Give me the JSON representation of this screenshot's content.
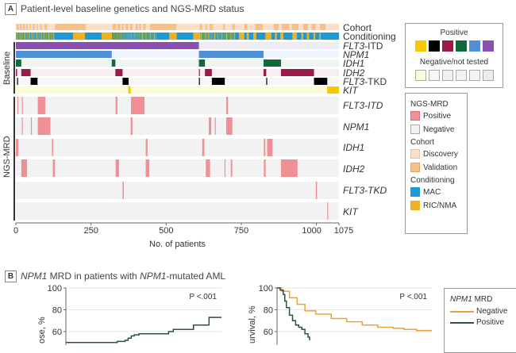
{
  "panel_a": {
    "label": "A",
    "title": "Patient-level baseline genetics and NGS-MRD status",
    "group_labels": {
      "baseline": "Baseline",
      "ngs_mrd": "NGS-MRD"
    },
    "annotation_rows": [
      {
        "key": "cohort",
        "label": "Cohort"
      },
      {
        "key": "conditioning",
        "label": "Conditioning"
      }
    ],
    "baseline_rows": [
      {
        "gene": "FLT3",
        "suffix": "-ITD",
        "italic_full": false
      },
      {
        "gene": "NPM1",
        "suffix": "",
        "italic_full": true
      },
      {
        "gene": "IDH1",
        "suffix": "",
        "italic_full": true
      },
      {
        "gene": "IDH2",
        "suffix": "",
        "italic_full": true
      },
      {
        "gene": "FLT3",
        "suffix": "-TKD",
        "italic_full": false
      },
      {
        "gene": "KIT",
        "suffix": "",
        "italic_full": true
      }
    ],
    "mrd_rows": [
      {
        "gene": "FLT3",
        "suffix": "-ITD"
      },
      {
        "gene": "NPM1",
        "suffix": ""
      },
      {
        "gene": "IDH1",
        "suffix": ""
      },
      {
        "gene": "IDH2",
        "suffix": ""
      },
      {
        "gene": "FLT3",
        "suffix": "-TKD"
      },
      {
        "gene": "KIT",
        "suffix": ""
      }
    ],
    "x_axis": {
      "label": "No. of patients",
      "ticks": [
        "0",
        "250",
        "500",
        "750",
        "1000",
        "1075"
      ],
      "tick_values": [
        0,
        250,
        500,
        750,
        1000,
        1075
      ]
    },
    "legend_positive": {
      "title": "Positive",
      "colors": [
        "#f5c800",
        "#000000",
        "#9b1b4a",
        "#0f6a3a",
        "#4f8fd6",
        "#8a4fb0"
      ],
      "neg_title": "Negative/not tested",
      "neg_colors": [
        "#fbfbd6",
        "#f6f6f6",
        "#f7eef1",
        "#eef4ef",
        "#eef5fb",
        "#ececf2"
      ]
    },
    "legend_mrd": {
      "ngs_title": "NGS-MRD",
      "ngs_items": [
        {
          "label": "Positive",
          "color": "#ef8f96"
        },
        {
          "label": "Negative",
          "color": "#f2f2f3"
        }
      ],
      "cohort_title": "Cohort",
      "cohort_items": [
        {
          "label": "Discovery",
          "color": "#fbe0c9"
        },
        {
          "label": "Validation",
          "color": "#f6c08a"
        }
      ],
      "cond_title": "Conditioning",
      "cond_items": [
        {
          "label": "MAC",
          "color": "#1a9bd7"
        },
        {
          "label": "RIC/NMA",
          "color": "#f2b01e"
        }
      ]
    }
  },
  "panel_b": {
    "label": "B",
    "title_gene1": "NPM1",
    "title_mid": " MRD in patients with ",
    "title_gene2": "NPM1",
    "title_end": "-mutated AML",
    "legend": {
      "title_gene": "NPM1",
      "title_rest": " MRD",
      "items": [
        {
          "label": "Negative",
          "color": "#e8a33a"
        },
        {
          "label": "Positive",
          "color": "#2f4f4a"
        }
      ]
    }
  },
  "chart_data": [
    {
      "type": "heatmap",
      "title": "Patient-level baseline genetics and NGS-MRD status",
      "xlabel": "No. of patients",
      "xlim": [
        0,
        1075
      ],
      "rows": [
        "Cohort",
        "Conditioning",
        "FLT3-ITD",
        "NPM1",
        "IDH1",
        "IDH2",
        "FLT3-TKD",
        "KIT",
        "MRD FLT3-ITD",
        "MRD NPM1",
        "MRD IDH1",
        "MRD IDH2",
        "MRD FLT3-TKD",
        "MRD KIT"
      ],
      "baseline_positive_spans": {
        "FLT3-ITD": [
          [
            0,
            609
          ]
        ],
        "NPM1": [
          [
            0,
            319
          ],
          [
            609,
            824
          ]
        ],
        "IDH1": [
          [
            0,
            18
          ],
          [
            319,
            331
          ],
          [
            609,
            629
          ],
          [
            824,
            882
          ]
        ],
        "IDH2": [
          [
            0,
            4
          ],
          [
            18,
            49
          ],
          [
            331,
            355
          ],
          [
            609,
            612
          ],
          [
            629,
            652
          ],
          [
            824,
            833
          ],
          [
            882,
            992
          ]
        ],
        "FLT3-TKD": [
          [
            4,
            6
          ],
          [
            49,
            72
          ],
          [
            355,
            375
          ],
          [
            609,
            612
          ],
          [
            652,
            695
          ],
          [
            833,
            835
          ],
          [
            992,
            1036
          ]
        ],
        "KIT": [
          [
            374,
            382
          ],
          [
            1036,
            1075
          ]
        ]
      },
      "mrd_positive_spans": {
        "FLT3-ITD": [
          [
            5,
            7
          ],
          [
            20,
            22
          ],
          [
            73,
            98
          ],
          [
            332,
            338
          ],
          [
            383,
            428
          ],
          [
            700,
            706
          ]
        ],
        "NPM1": [
          [
            20,
            22
          ],
          [
            50,
            52
          ],
          [
            73,
            115
          ],
          [
            382,
            388
          ],
          [
            642,
            650
          ],
          [
            662,
            665
          ],
          [
            700,
            720
          ]
        ],
        "IDH1": [
          [
            0,
            8
          ],
          [
            120,
            124
          ],
          [
            432,
            438
          ],
          [
            620,
            627
          ],
          [
            825,
            830
          ],
          [
            836,
            854
          ]
        ],
        "IDH2": [
          [
            18,
            37
          ],
          [
            123,
            130
          ],
          [
            332,
            343
          ],
          [
            432,
            444
          ],
          [
            632,
            646
          ],
          [
            694,
            697
          ],
          [
            715,
            720
          ],
          [
            825,
            831
          ],
          [
            882,
            937
          ]
        ],
        "FLT3-TKD": [
          [
            355,
            359
          ],
          [
            998,
            1002
          ]
        ],
        "KIT": [
          [
            1036,
            1038
          ]
        ]
      },
      "baseline_colors": {
        "FLT3-ITD": "#8a4fb0",
        "NPM1": "#4f8fd6",
        "IDH1": "#0f6a3a",
        "IDH2": "#9b1b4a",
        "FLT3-TKD": "#000000",
        "KIT": "#f5c800"
      },
      "baseline_neg_colors": {
        "FLT3-ITD": "#ececf2",
        "NPM1": "#eef5fb",
        "IDH1": "#eef4ef",
        "IDH2": "#f7eef1",
        "FLT3-TKD": "#f6f6f6",
        "KIT": "#fbfbd6"
      },
      "cohort_validation_spans": [
        [
          2,
          10
        ],
        [
          14,
          20
        ],
        [
          24,
          30
        ],
        [
          34,
          40
        ],
        [
          46,
          50
        ],
        [
          56,
          62
        ],
        [
          70,
          74
        ],
        [
          80,
          86
        ],
        [
          96,
          104
        ],
        [
          130,
          232
        ],
        [
          322,
          334
        ],
        [
          338,
          348
        ],
        [
          352,
          358
        ],
        [
          364,
          374
        ],
        [
          380,
          388
        ],
        [
          398,
          406
        ],
        [
          410,
          416
        ],
        [
          424,
          432
        ],
        [
          446,
          534
        ],
        [
          612,
          620
        ],
        [
          630,
          636
        ],
        [
          644,
          656
        ],
        [
          690,
          696
        ],
        [
          720,
          728
        ],
        [
          760,
          770
        ],
        [
          796,
          822
        ],
        [
          858,
          874
        ],
        [
          884,
          910
        ],
        [
          918,
          940
        ],
        [
          956,
          972
        ],
        [
          984,
          998
        ],
        [
          1012,
          1030
        ]
      ],
      "conditioning_ric_spans": [
        [
          4,
          6
        ],
        [
          12,
          14
        ],
        [
          20,
          22
        ],
        [
          28,
          30
        ],
        [
          36,
          38
        ],
        [
          44,
          46
        ],
        [
          52,
          54
        ],
        [
          60,
          62
        ],
        [
          68,
          70
        ],
        [
          76,
          78
        ],
        [
          84,
          86
        ],
        [
          92,
          94
        ],
        [
          100,
          102
        ],
        [
          108,
          110
        ],
        [
          116,
          118
        ],
        [
          124,
          126
        ],
        [
          190,
          230
        ],
        [
          285,
          320
        ],
        [
          338,
          340
        ],
        [
          348,
          350
        ],
        [
          358,
          360
        ],
        [
          372,
          374
        ],
        [
          382,
          384
        ],
        [
          394,
          396
        ],
        [
          408,
          410
        ],
        [
          420,
          422
        ],
        [
          432,
          434
        ],
        [
          446,
          448
        ],
        [
          460,
          462
        ],
        [
          510,
          535
        ],
        [
          590,
          620
        ],
        [
          630,
          632
        ],
        [
          640,
          642
        ],
        [
          648,
          650
        ],
        [
          660,
          662
        ],
        [
          672,
          674
        ],
        [
          684,
          686
        ],
        [
          700,
          702
        ],
        [
          714,
          716
        ],
        [
          726,
          728
        ],
        [
          742,
          760
        ],
        [
          768,
          775
        ],
        [
          790,
          800
        ],
        [
          830,
          850
        ],
        [
          862,
          868
        ],
        [
          880,
          890
        ],
        [
          920,
          935
        ],
        [
          950,
          956
        ],
        [
          968,
          975
        ],
        [
          990,
          996
        ],
        [
          1010,
          1014
        ]
      ],
      "colors": {
        "mrd_positive": "#ef8f96",
        "mrd_negative": "#f2f2f3",
        "discovery": "#fbe0c9",
        "validation": "#f6c08a",
        "mac": "#1a9bd7",
        "ric": "#f2b01e"
      }
    },
    {
      "type": "line",
      "title": "",
      "ylabel": "Relapse, %",
      "ylim": [
        0,
        100
      ],
      "y_ticks": [
        60,
        80,
        100
      ],
      "annotation": "P <.001",
      "series": [
        {
          "name": "Positive",
          "color": "#2f4f4a",
          "x": [
            0,
            0.3,
            0.33,
            0.38,
            0.4,
            0.42,
            0.44,
            0.47,
            0.55,
            0.66,
            0.69,
            0.8,
            0.82,
            0.92,
            1.0
          ],
          "y": [
            50,
            50,
            51,
            52,
            54,
            56,
            57,
            58,
            58,
            60,
            62,
            62,
            66,
            73,
            73
          ]
        }
      ]
    },
    {
      "type": "line",
      "title": "",
      "ylabel": "Survival, %",
      "ylim": [
        0,
        100
      ],
      "y_ticks": [
        60,
        80,
        100
      ],
      "annotation": "P <.001",
      "series": [
        {
          "name": "Negative",
          "color": "#e8a33a",
          "x": [
            0,
            0.03,
            0.08,
            0.13,
            0.18,
            0.25,
            0.35,
            0.45,
            0.55,
            0.65,
            0.75,
            0.82,
            0.9,
            1.0
          ],
          "y": [
            100,
            97,
            91,
            85,
            79,
            76,
            72,
            69,
            66,
            64,
            63,
            62,
            61,
            61
          ]
        },
        {
          "name": "Positive",
          "color": "#2f4f4a",
          "x": [
            0,
            0.02,
            0.04,
            0.05,
            0.06,
            0.08,
            0.1,
            0.12,
            0.14,
            0.16,
            0.18,
            0.2,
            0.21
          ],
          "y": [
            100,
            98,
            94,
            88,
            82,
            75,
            70,
            66,
            64,
            62,
            58,
            55,
            52
          ]
        }
      ]
    }
  ]
}
